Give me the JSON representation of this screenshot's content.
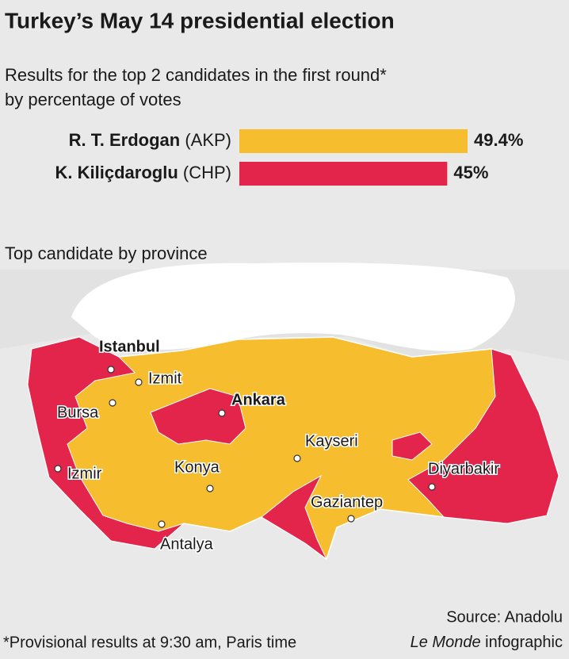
{
  "chart_data": {
    "type": "bar",
    "orientation": "horizontal",
    "title": "Turkey’s May 14 presidential election",
    "subtitle": "Results for the top 2 candidates in the first round*",
    "subtitle2": "by percentage of votes",
    "categories": [
      "R. T. Erdogan",
      "K. Kiliçdaroglu"
    ],
    "parties": [
      "(AKP)",
      "(CHP)"
    ],
    "values": [
      49.4,
      45
    ],
    "value_labels": [
      "49.4%",
      "45%"
    ],
    "colors": [
      "#f6bd2e",
      "#e3244b"
    ]
  },
  "map": {
    "heading": "Top candidate by province",
    "labels": [
      "Istanbul",
      "Izmit",
      "Ankara",
      "Bursa",
      "Kayseri",
      "Konya",
      "Izmir",
      "Diyarbakir",
      "Gaziantep",
      "Antalya"
    ]
  },
  "footer": {
    "note": "*Provisional results at 9:30 am, Paris time",
    "source": "Source: Anadolu",
    "brand": "Le Monde",
    "credit": "infographic"
  }
}
